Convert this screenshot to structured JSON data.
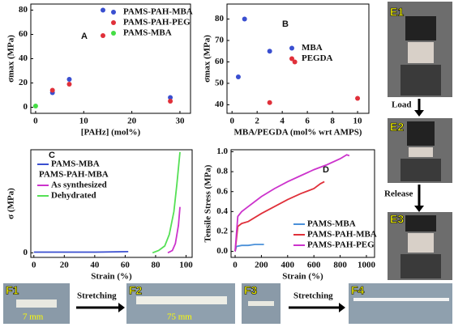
{
  "chart_data": [
    {
      "type": "scatter",
      "label": "A",
      "xlabel": "[PAHz] (mol%)",
      "ylabel": "σmax (MPa)",
      "xlim": [
        -1,
        32.2
      ],
      "ylim": [
        -5,
        85
      ],
      "xticks": [
        0,
        10,
        20,
        30
      ],
      "yticks": [
        0,
        20,
        40,
        60,
        80
      ],
      "legend": "upper right",
      "series": [
        {
          "name": "PAMS-PAH-MBA",
          "color": "#3a4fd0",
          "x": [
            3.5,
            7,
            14,
            28
          ],
          "values": [
            12,
            23,
            80,
            8
          ]
        },
        {
          "name": "PAMS-PAH-PEG",
          "color": "#e0303a",
          "x": [
            3.5,
            7,
            14,
            28
          ],
          "values": [
            14,
            19,
            59,
            5
          ]
        },
        {
          "name": "PAMS-MBA",
          "color": "#44dd44",
          "x": [
            0
          ],
          "values": [
            1
          ]
        }
      ]
    },
    {
      "type": "scatter",
      "label": "B",
      "xlabel": "MBA/PEGDA (mol% wrt AMPS)",
      "ylabel": "σmax (MPa)",
      "xlim": [
        -0.4,
        10.9
      ],
      "ylim": [
        36,
        87
      ],
      "xticks": [
        0,
        2,
        4,
        6,
        8,
        10
      ],
      "yticks": [
        40,
        50,
        60,
        70,
        80
      ],
      "legend": "center right",
      "series": [
        {
          "name": "MBA",
          "color": "#3a4fd0",
          "x": [
            0.5,
            1,
            3
          ],
          "values": [
            53,
            80,
            65
          ]
        },
        {
          "name": "PEGDA",
          "color": "#e0303a",
          "x": [
            3,
            5,
            10
          ],
          "values": [
            41,
            60,
            43
          ]
        }
      ]
    },
    {
      "type": "line",
      "label": "C",
      "xlabel": "Strain (%)",
      "ylabel": "σ (MPa)",
      "xlim": [
        -2,
        104
      ],
      "ylim": [
        -2,
        45
      ],
      "xticks": [
        0,
        20,
        40,
        60,
        80,
        100
      ],
      "yticks": [
        0
      ],
      "legend": "upper left",
      "legend_group": "PAMS-PAH-MBA",
      "series": [
        {
          "name": "PAMS-MBA",
          "color": "#3a4fd0",
          "x": [
            0,
            20,
            40,
            62
          ],
          "values": [
            0.3,
            0.3,
            0.3,
            0.5
          ]
        },
        {
          "name": "As synthesized",
          "color": "#cc33cc",
          "x": [
            88,
            91,
            93,
            95,
            96
          ],
          "values": [
            0,
            1,
            4,
            12,
            20
          ]
        },
        {
          "name": "Dehydrated",
          "color": "#55e055",
          "x": [
            78,
            82,
            86,
            89,
            92,
            94,
            96
          ],
          "values": [
            0,
            1,
            3,
            8,
            18,
            30,
            44
          ]
        }
      ]
    },
    {
      "type": "line",
      "label": "D",
      "xlabel": "Strain (%)",
      "ylabel": "Tensile Stress (MPa)",
      "xlim": [
        -31,
        1062
      ],
      "ylim": [
        -0.06,
        1.02
      ],
      "xticks": [
        0,
        200,
        400,
        600,
        800,
        1000
      ],
      "yticks": [
        {
          "value": 0,
          "label": "0.0"
        },
        0.2,
        0.4,
        0.6,
        0.8,
        {
          "value": 1,
          "label": "1.0"
        }
      ],
      "legend": "lower right",
      "series": [
        {
          "name": "PAMS-MBA",
          "color": "#4a90d9",
          "x": [
            0,
            10,
            50,
            100,
            150,
            200,
            220
          ],
          "values": [
            0,
            0.05,
            0.06,
            0.06,
            0.07,
            0.07,
            0.07
          ]
        },
        {
          "name": "PAMS-PAH-MBA",
          "color": "#e0303a",
          "x": [
            0,
            20,
            50,
            100,
            200,
            300,
            400,
            500,
            600,
            650,
            680
          ],
          "values": [
            0,
            0.25,
            0.28,
            0.3,
            0.38,
            0.45,
            0.52,
            0.58,
            0.63,
            0.68,
            0.7
          ]
        },
        {
          "name": "PAMS-PAH-PEG",
          "color": "#cc33cc",
          "x": [
            0,
            20,
            50,
            100,
            200,
            300,
            400,
            500,
            600,
            700,
            800,
            850,
            870
          ],
          "values": [
            0,
            0.35,
            0.4,
            0.45,
            0.55,
            0.63,
            0.7,
            0.76,
            0.82,
            0.87,
            0.93,
            0.97,
            0.96
          ]
        }
      ]
    }
  ],
  "photos": {
    "e_labels": [
      "E1",
      "E2",
      "E3"
    ],
    "load": "Load",
    "release": "Release",
    "f_labels": [
      "F1",
      "F2",
      "F3",
      "F4"
    ],
    "stretching": [
      "Stretching",
      "Stretching"
    ],
    "lengths": [
      "7 mm",
      "75 mm"
    ]
  }
}
